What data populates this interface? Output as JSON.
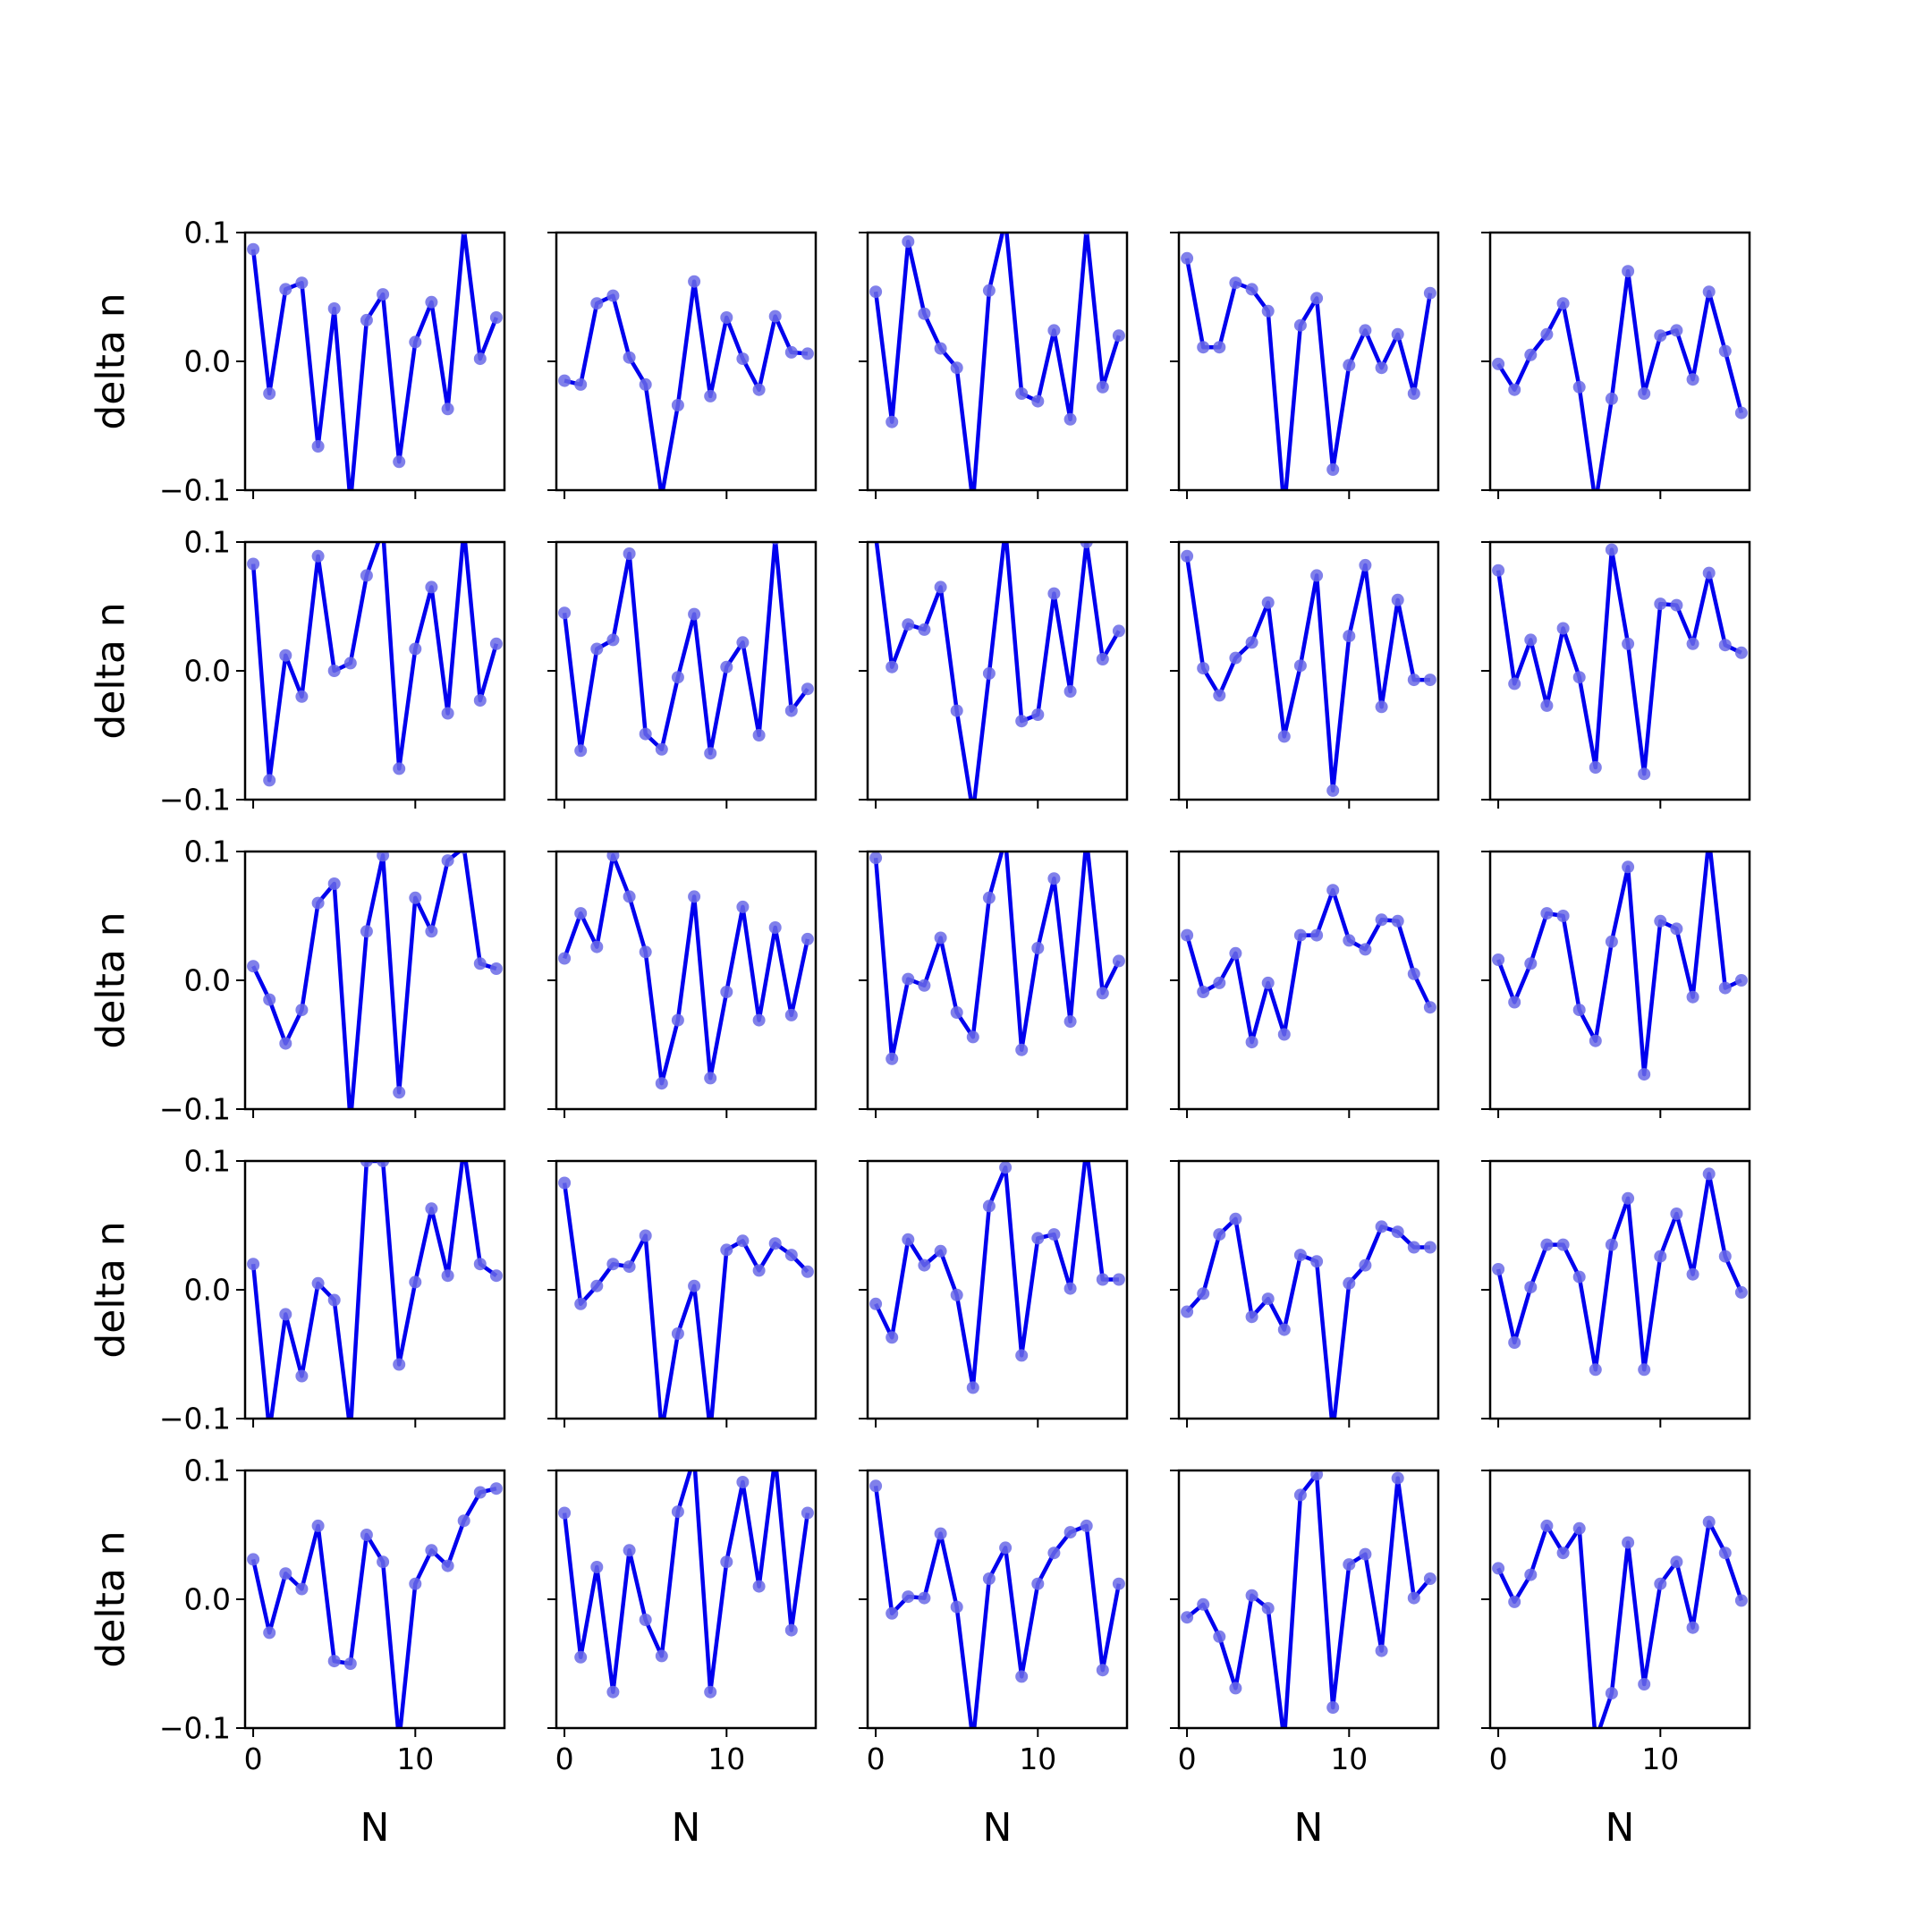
{
  "chart_data": {
    "type": "line",
    "layout": "5x5 grid of small multiples",
    "xlabel": "N",
    "ylabel": "delta n",
    "xlim": [
      -0.5,
      15.5
    ],
    "ylim": [
      -0.1,
      0.1
    ],
    "x_ticks": [
      0,
      10
    ],
    "y_ticks": [
      -0.1,
      0.0,
      0.1
    ],
    "y_tick_labels": [
      "−0.1",
      "0.0",
      "0.1"
    ],
    "x": [
      0,
      1,
      2,
      3,
      4,
      5,
      6,
      7,
      8,
      9,
      10,
      11,
      12,
      13,
      14,
      15
    ],
    "line_color": "#0000ee",
    "marker_color": "#6a6ae6",
    "panels": [
      [
        0.087,
        -0.025,
        0.056,
        0.061,
        -0.066,
        0.041,
        -0.11,
        0.032,
        0.052,
        -0.078,
        0.015,
        0.046,
        -0.037,
        0.103,
        0.002,
        0.034
      ],
      [
        -0.015,
        -0.018,
        0.045,
        0.051,
        0.003,
        -0.018,
        -0.105,
        -0.034,
        0.062,
        -0.027,
        0.034,
        0.002,
        -0.022,
        0.035,
        0.007,
        0.006
      ],
      [
        0.054,
        -0.047,
        0.093,
        0.037,
        0.01,
        -0.005,
        -0.11,
        0.055,
        0.11,
        -0.025,
        -0.031,
        0.024,
        -0.045,
        0.103,
        -0.02,
        0.02
      ],
      [
        0.08,
        0.011,
        0.011,
        0.061,
        0.056,
        0.039,
        -0.115,
        0.028,
        0.049,
        -0.084,
        -0.003,
        0.024,
        -0.005,
        0.021,
        -0.025,
        0.053
      ],
      [
        -0.002,
        -0.022,
        0.005,
        0.021,
        0.045,
        -0.02,
        -0.11,
        -0.029,
        0.07,
        -0.025,
        0.02,
        0.024,
        -0.014,
        0.054,
        0.008,
        -0.04
      ],
      [
        0.083,
        -0.085,
        0.012,
        -0.02,
        0.089,
        0.0,
        0.006,
        0.074,
        0.11,
        -0.076,
        0.017,
        0.065,
        -0.033,
        0.11,
        -0.023,
        0.021
      ],
      [
        0.045,
        -0.062,
        0.017,
        0.024,
        0.091,
        -0.049,
        -0.061,
        -0.005,
        0.044,
        -0.064,
        0.003,
        0.022,
        -0.05,
        0.103,
        -0.031,
        -0.014
      ],
      [
        0.105,
        0.003,
        0.036,
        0.032,
        0.065,
        -0.031,
        -0.11,
        -0.002,
        0.11,
        -0.039,
        -0.034,
        0.06,
        -0.016,
        0.1,
        0.009,
        0.031
      ],
      [
        0.089,
        0.002,
        -0.019,
        0.01,
        0.022,
        0.053,
        -0.051,
        0.004,
        0.074,
        -0.093,
        0.027,
        0.082,
        -0.028,
        0.055,
        -0.007,
        -0.007
      ],
      [
        0.078,
        -0.01,
        0.024,
        -0.027,
        0.033,
        -0.005,
        -0.075,
        0.094,
        0.021,
        -0.08,
        0.052,
        0.051,
        0.021,
        0.076,
        0.02,
        0.014
      ],
      [
        0.011,
        -0.015,
        -0.049,
        -0.023,
        0.06,
        0.075,
        -0.11,
        0.038,
        0.097,
        -0.087,
        0.064,
        0.038,
        0.093,
        0.103,
        0.013,
        0.009
      ],
      [
        0.017,
        0.052,
        0.026,
        0.097,
        0.065,
        0.022,
        -0.08,
        -0.031,
        0.065,
        -0.076,
        -0.009,
        0.057,
        -0.031,
        0.041,
        -0.027,
        0.032
      ],
      [
        0.095,
        -0.061,
        0.001,
        -0.004,
        0.033,
        -0.025,
        -0.044,
        0.064,
        0.11,
        -0.054,
        0.025,
        0.079,
        -0.032,
        0.11,
        -0.01,
        0.015
      ],
      [
        0.035,
        -0.009,
        -0.002,
        0.021,
        -0.048,
        -0.002,
        -0.042,
        0.035,
        0.035,
        0.07,
        0.031,
        0.024,
        0.047,
        0.046,
        0.005,
        -0.021
      ],
      [
        0.016,
        -0.017,
        0.013,
        0.052,
        0.05,
        -0.023,
        -0.047,
        0.03,
        0.088,
        -0.073,
        0.046,
        0.04,
        -0.013,
        0.11,
        -0.006,
        0.0
      ],
      [
        0.02,
        -0.11,
        -0.019,
        -0.067,
        0.005,
        -0.008,
        -0.11,
        0.1,
        0.1,
        -0.058,
        0.006,
        0.063,
        0.011,
        0.11,
        0.02,
        0.011
      ],
      [
        0.083,
        -0.011,
        0.003,
        0.02,
        0.018,
        0.042,
        -0.11,
        -0.034,
        0.003,
        -0.11,
        0.031,
        0.038,
        0.015,
        0.036,
        0.027,
        0.014
      ],
      [
        -0.011,
        -0.037,
        0.039,
        0.019,
        0.03,
        -0.004,
        -0.076,
        0.065,
        0.095,
        -0.051,
        0.04,
        0.043,
        0.001,
        0.11,
        0.008,
        0.008
      ],
      [
        -0.017,
        -0.003,
        0.043,
        0.055,
        -0.021,
        -0.007,
        -0.031,
        0.027,
        0.022,
        -0.11,
        0.005,
        0.019,
        0.049,
        0.045,
        0.033,
        0.033
      ],
      [
        0.016,
        -0.041,
        0.002,
        0.035,
        0.035,
        0.01,
        -0.062,
        0.035,
        0.071,
        -0.062,
        0.026,
        0.059,
        0.012,
        0.09,
        0.026,
        -0.002
      ],
      [
        0.031,
        -0.026,
        0.02,
        0.008,
        0.057,
        -0.048,
        -0.05,
        0.05,
        0.029,
        -0.11,
        0.012,
        0.038,
        0.026,
        0.061,
        0.083,
        0.086
      ],
      [
        0.067,
        -0.045,
        0.025,
        -0.072,
        0.038,
        -0.016,
        -0.044,
        0.068,
        0.11,
        -0.072,
        0.029,
        0.091,
        0.01,
        0.11,
        -0.024,
        0.067
      ],
      [
        0.088,
        -0.011,
        0.002,
        0.001,
        0.051,
        -0.006,
        -0.11,
        0.016,
        0.04,
        -0.06,
        0.012,
        0.036,
        0.052,
        0.057,
        -0.055,
        0.012
      ],
      [
        -0.014,
        -0.004,
        -0.029,
        -0.069,
        0.003,
        -0.007,
        -0.11,
        0.081,
        0.097,
        -0.084,
        0.027,
        0.035,
        -0.04,
        0.094,
        0.001,
        0.016
      ],
      [
        0.024,
        -0.002,
        0.019,
        0.057,
        0.036,
        0.055,
        -0.11,
        -0.073,
        0.044,
        -0.066,
        0.012,
        0.029,
        -0.022,
        0.06,
        0.036,
        -0.001
      ]
    ]
  }
}
